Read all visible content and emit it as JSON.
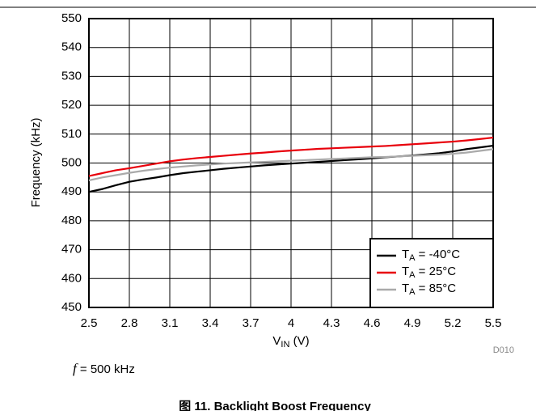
{
  "chart_data": {
    "type": "line",
    "xlabel": "VIN (V)",
    "ylabel": "Frequency (kHz)",
    "figure_id": "D010",
    "note": "f = 500 kHz",
    "caption": "图 11. Backlight Boost Frequency",
    "x": [
      2.5,
      2.6,
      2.7,
      2.8,
      2.9,
      3.0,
      3.1,
      3.2,
      3.3,
      3.4,
      3.5,
      3.6,
      3.7,
      3.8,
      3.9,
      4.0,
      4.1,
      4.2,
      4.3,
      4.4,
      4.5,
      4.6,
      4.7,
      4.8,
      4.9,
      5.0,
      5.1,
      5.2,
      5.3,
      5.4,
      5.5
    ],
    "series": [
      {
        "name": "TA = -40°C",
        "color": "#000000",
        "values": [
          490,
          491,
          492.3,
          493.5,
          494.3,
          495,
          495.8,
          496.5,
          497,
          497.5,
          498,
          498.4,
          498.8,
          499.2,
          499.5,
          499.8,
          500.1,
          500.4,
          500.7,
          501,
          501.3,
          501.6,
          502,
          502.3,
          502.6,
          503,
          503.4,
          504,
          504.8,
          505.4,
          506
        ]
      },
      {
        "name": "TA = 25°C",
        "color": "#e8000b",
        "values": [
          495.5,
          496.5,
          497.5,
          498.2,
          499,
          499.8,
          500.6,
          501.2,
          501.7,
          502.1,
          502.5,
          502.9,
          503.3,
          503.6,
          504,
          504.3,
          504.6,
          504.9,
          505.1,
          505.3,
          505.5,
          505.7,
          505.9,
          506.2,
          506.5,
          506.8,
          507.1,
          507.4,
          507.8,
          508.3,
          508.8
        ]
      },
      {
        "name": "TA = 85°C",
        "color": "#aaaaaa",
        "values": [
          494,
          495,
          495.8,
          496.6,
          497.3,
          497.9,
          498.4,
          498.8,
          499.2,
          499.5,
          499.8,
          500,
          500.2,
          500.4,
          500.6,
          500.8,
          501,
          501.2,
          501.4,
          501.6,
          501.8,
          502,
          502.1,
          502.3,
          502.5,
          502.7,
          502.9,
          503.2,
          503.6,
          504.2,
          504.8
        ]
      }
    ],
    "xlim": [
      2.5,
      5.5
    ],
    "xticks": [
      2.5,
      2.8,
      3.1,
      3.4,
      3.7,
      4,
      4.3,
      4.6,
      4.9,
      5.2,
      5.5
    ],
    "ylim": [
      450,
      550
    ],
    "yticks": [
      450,
      460,
      470,
      480,
      490,
      500,
      510,
      520,
      530,
      540,
      550
    ],
    "grid": true,
    "legend": "lower right"
  }
}
